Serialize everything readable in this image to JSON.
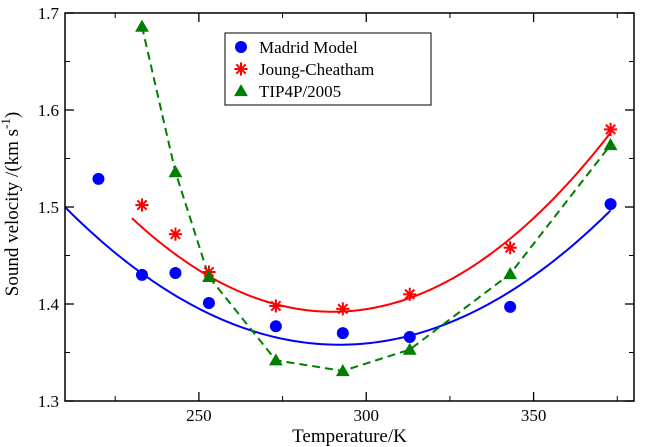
{
  "chart_data": {
    "type": "scatter",
    "xlabel": "Temperature/K",
    "ylabel": "Sound velocity /(km s",
    "ylabel_sup": "-1",
    "ylabel_end": ")",
    "xlim": [
      210,
      380
    ],
    "ylim": [
      1.3,
      1.7
    ],
    "xticks": [
      250,
      300,
      350
    ],
    "yticks": [
      1.3,
      1.4,
      1.5,
      1.6,
      1.7
    ],
    "xtick_labels": [
      "250",
      "300",
      "350"
    ],
    "ytick_labels": [
      "1.3",
      "1.4",
      "1.5",
      "1.6",
      "1.7"
    ],
    "grid": false,
    "legend_position": "top-center",
    "series": [
      {
        "name": "Madrid Model",
        "color": "#0000ff",
        "marker": "circle",
        "points": [
          [
            220,
            1.529
          ],
          [
            233,
            1.43
          ],
          [
            243,
            1.432
          ],
          [
            253,
            1.401
          ],
          [
            273,
            1.377
          ],
          [
            293,
            1.37
          ],
          [
            313,
            1.366
          ],
          [
            343,
            1.397
          ],
          [
            373,
            1.503
          ]
        ],
        "fit_coeffs": [
          1.358,
          0.0,
          2.11e-05
        ],
        "fit_center": 292,
        "fit_range": [
          210,
          373
        ]
      },
      {
        "name": "Joung-Cheatham",
        "color": "#ff0000",
        "marker": "asterisk",
        "points": [
          [
            233,
            1.502
          ],
          [
            243,
            1.472
          ],
          [
            253,
            1.433
          ],
          [
            273,
            1.398
          ],
          [
            293,
            1.395
          ],
          [
            313,
            1.41
          ],
          [
            343,
            1.458
          ],
          [
            373,
            1.58
          ]
        ],
        "fit_coeffs": [
          1.392,
          0.0,
          2.68e-05
        ],
        "fit_center": 290,
        "fit_range": [
          230,
          373
        ]
      },
      {
        "name": "TIP4P/2005",
        "color": "#008000",
        "marker": "triangle",
        "line": "dashed",
        "points": [
          [
            233,
            1.686
          ],
          [
            243,
            1.536
          ],
          [
            253,
            1.428
          ],
          [
            273,
            1.342
          ],
          [
            293,
            1.331
          ],
          [
            313,
            1.353
          ],
          [
            343,
            1.431
          ],
          [
            373,
            1.564
          ]
        ]
      }
    ]
  }
}
